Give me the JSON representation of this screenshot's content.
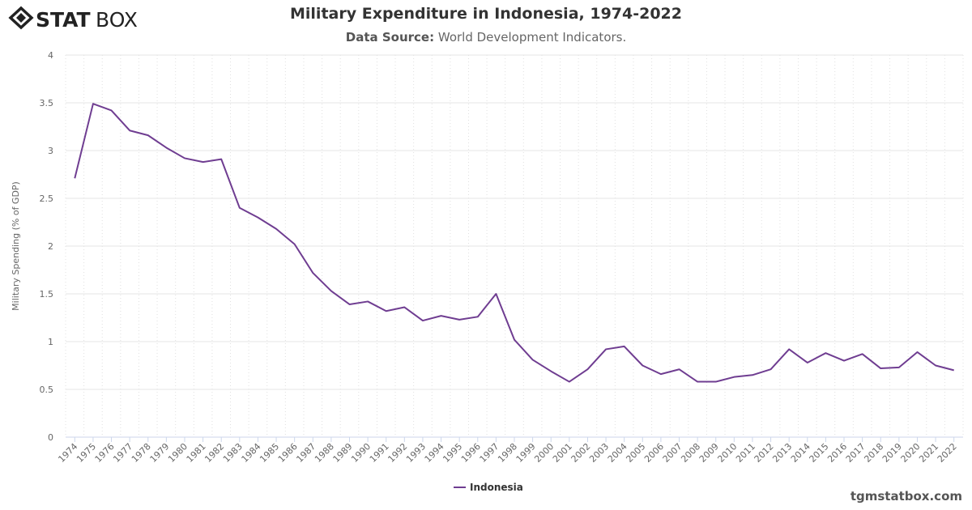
{
  "logo_text": "STATBOX",
  "title": "Military Expenditure in Indonesia, 1974-2022",
  "subtitle_label": "Data Source:",
  "subtitle_value": "World Development Indicators.",
  "watermark": "tgmstatbox.com",
  "colors": {
    "series": "#6f3d91",
    "grid": "#e6e6e6"
  },
  "chart_data": {
    "type": "line",
    "title": "Military Expenditure in Indonesia, 1974-2022",
    "ylabel": "Military Spending (% of GDP)",
    "xlabel": "",
    "ylim": [
      0,
      4
    ],
    "yticks": [
      "0",
      "0.5",
      "1",
      "1.5",
      "2",
      "2.5",
      "3",
      "3.5",
      "4"
    ],
    "grid": true,
    "legend": "bottom-center",
    "categories": [
      "1974",
      "1975",
      "1976",
      "1977",
      "1978",
      "1979",
      "1980",
      "1981",
      "1982",
      "1983",
      "1984",
      "1985",
      "1986",
      "1987",
      "1988",
      "1989",
      "1990",
      "1991",
      "1992",
      "1993",
      "1994",
      "1995",
      "1996",
      "1997",
      "1998",
      "1999",
      "2000",
      "2001",
      "2002",
      "2003",
      "2004",
      "2005",
      "2006",
      "2007",
      "2008",
      "2009",
      "2010",
      "2011",
      "2012",
      "2013",
      "2014",
      "2015",
      "2016",
      "2017",
      "2018",
      "2019",
      "2020",
      "2021",
      "2022"
    ],
    "series": [
      {
        "name": "Indonesia",
        "values": [
          2.71,
          3.49,
          3.42,
          3.21,
          3.16,
          3.03,
          2.92,
          2.88,
          2.91,
          2.4,
          2.3,
          2.18,
          2.02,
          1.72,
          1.53,
          1.39,
          1.42,
          1.32,
          1.36,
          1.22,
          1.27,
          1.23,
          1.26,
          1.5,
          1.02,
          0.81,
          0.69,
          0.58,
          0.71,
          0.92,
          0.95,
          0.75,
          0.66,
          0.71,
          0.58,
          0.58,
          0.63,
          0.65,
          0.71,
          0.92,
          0.78,
          0.88,
          0.8,
          0.87,
          0.72,
          0.73,
          0.89,
          0.75,
          0.7
        ]
      }
    ]
  }
}
